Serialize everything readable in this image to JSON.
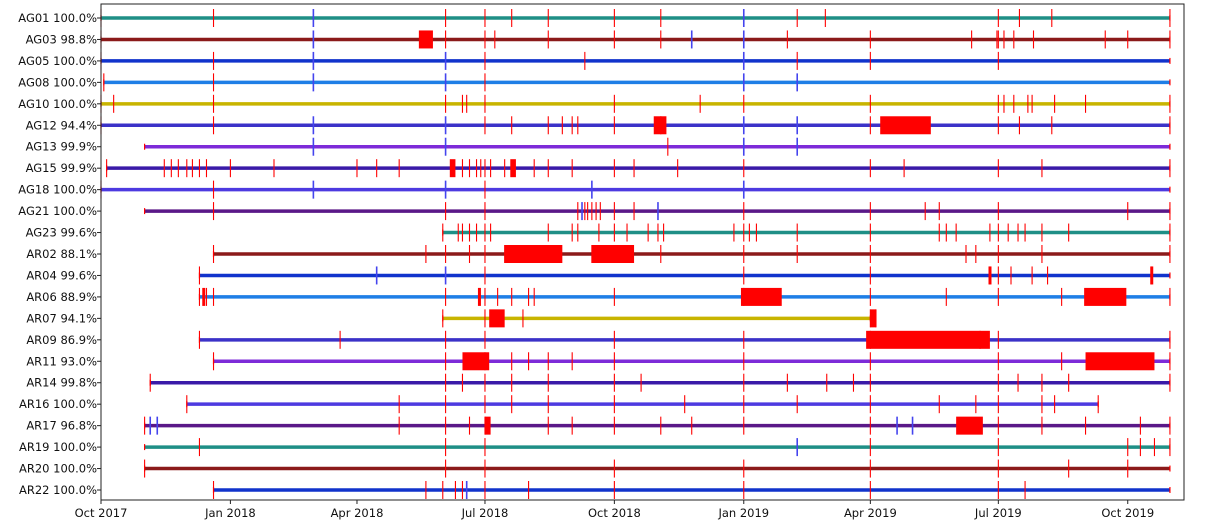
{
  "chart_data": {
    "type": "timeline",
    "title": "",
    "xlabel": "",
    "ylabel": "",
    "x_range": [
      "2017-10-01",
      "2019-11-10"
    ],
    "x_ticks": [
      {
        "date": "2017-10-01",
        "label": "Oct 2017"
      },
      {
        "date": "2018-01-01",
        "label": "Jan 2018"
      },
      {
        "date": "2018-04-01",
        "label": "Apr 2018"
      },
      {
        "date": "2018-07-01",
        "label": "Jul 2018"
      },
      {
        "date": "2018-10-01",
        "label": "Oct 2018"
      },
      {
        "date": "2019-01-01",
        "label": "Jan 2019"
      },
      {
        "date": "2019-04-01",
        "label": "Apr 2019"
      },
      {
        "date": "2019-07-01",
        "label": "Jul 2019"
      },
      {
        "date": "2019-10-01",
        "label": "Oct 2019"
      }
    ],
    "colors": {
      "gap": "#ff0000",
      "gap_dark": "#cc1010",
      "minor_mark": "#4444ee"
    },
    "rows": [
      {
        "name": "AG01",
        "availability": "100.0%",
        "start": "2017-10-01",
        "end": "2019-10-31",
        "color": "#1f8f86",
        "marks": [
          "2017-10-01",
          "2017-12-20",
          "2018-03-01",
          "2018-06-03",
          "2018-07-01",
          "2018-07-20",
          "2018-08-15",
          "2018-10-01",
          "2018-11-03",
          "2019-01-01",
          "2019-02-08",
          "2019-02-28",
          "2019-07-01",
          "2019-07-16",
          "2019-08-08",
          "2019-10-31"
        ],
        "minor": [
          "2018-03-01",
          "2019-01-01"
        ],
        "gaps": []
      },
      {
        "name": "AG03",
        "availability": "98.8%",
        "start": "2017-10-01",
        "end": "2019-10-31",
        "color": "#8b1a1a",
        "marks": [
          "2017-10-01",
          "2018-03-01",
          "2018-06-03",
          "2018-07-01",
          "2018-07-08",
          "2018-08-15",
          "2018-10-01",
          "2018-11-03",
          "2018-11-25",
          "2019-01-01",
          "2019-02-01",
          "2019-04-01",
          "2019-06-12",
          "2019-06-30",
          "2019-07-01",
          "2019-07-05",
          "2019-07-12",
          "2019-07-26",
          "2019-09-15",
          "2019-10-01",
          "2019-10-31"
        ],
        "minor": [
          "2018-03-01",
          "2018-11-25",
          "2019-01-01"
        ],
        "gaps": [
          {
            "start": "2018-05-15",
            "end": "2018-05-25"
          }
        ]
      },
      {
        "name": "AG05",
        "availability": "100.0%",
        "start": "2017-10-01",
        "end": "2019-10-31",
        "color": "#1133cc",
        "marks": [
          "2017-10-01",
          "2017-12-20",
          "2018-03-01",
          "2018-06-03",
          "2018-07-01",
          "2018-09-10",
          "2019-01-01",
          "2019-02-08",
          "2019-04-01",
          "2019-07-01"
        ],
        "minor": [
          "2018-03-01",
          "2018-06-03",
          "2019-01-01"
        ],
        "gaps": []
      },
      {
        "name": "AG08",
        "availability": "100.0%",
        "start": "2017-10-03",
        "end": "2019-10-31",
        "color": "#1e7ee6",
        "marks": [
          "2017-10-03",
          "2017-12-20",
          "2018-03-01",
          "2018-06-03",
          "2018-07-01",
          "2019-01-01",
          "2019-02-08"
        ],
        "minor": [
          "2018-03-01",
          "2018-06-03",
          "2019-01-01",
          "2019-02-08"
        ],
        "gaps": []
      },
      {
        "name": "AG10",
        "availability": "100.0%",
        "start": "2017-10-01",
        "end": "2019-10-31",
        "color": "#c8b400",
        "marks": [
          "2017-10-01",
          "2017-10-10",
          "2017-12-20",
          "2018-06-03",
          "2018-06-15",
          "2018-06-18",
          "2018-07-01",
          "2018-10-01",
          "2018-12-01",
          "2019-01-01",
          "2019-04-01",
          "2019-07-01",
          "2019-07-05",
          "2019-07-12",
          "2019-07-22",
          "2019-07-25",
          "2019-08-10",
          "2019-09-01",
          "2019-10-31"
        ],
        "minor": [],
        "gaps": []
      },
      {
        "name": "AG12",
        "availability": "94.4%",
        "start": "2017-10-01",
        "end": "2019-10-31",
        "color": "#3b32c8",
        "marks": [
          "2017-10-01",
          "2017-12-20",
          "2018-03-01",
          "2018-06-03",
          "2018-07-01",
          "2018-07-20",
          "2018-08-15",
          "2018-08-25",
          "2018-09-01",
          "2018-09-05",
          "2018-10-01",
          "2018-11-03",
          "2019-01-01",
          "2019-02-08",
          "2019-04-01",
          "2019-07-01",
          "2019-07-16",
          "2019-08-08",
          "2019-10-31"
        ],
        "minor": [
          "2018-03-01",
          "2018-06-03",
          "2019-01-01",
          "2019-02-08"
        ],
        "gaps": [
          {
            "start": "2018-10-29",
            "end": "2018-11-07"
          },
          {
            "start": "2019-04-08",
            "end": "2019-05-14"
          }
        ]
      },
      {
        "name": "AG13",
        "availability": "99.9%",
        "start": "2017-11-01",
        "end": "2019-10-31",
        "color": "#7d2bd8",
        "marks": [
          "2018-03-01",
          "2018-06-03",
          "2018-11-08",
          "2019-01-01",
          "2019-02-08"
        ],
        "minor": [
          "2018-03-01",
          "2018-06-03",
          "2019-01-01",
          "2019-02-08"
        ],
        "gaps": []
      },
      {
        "name": "AG15",
        "availability": "99.9%",
        "start": "2017-10-05",
        "end": "2019-10-31",
        "color": "#3a1aa8",
        "marks": [
          "2017-10-05",
          "2017-11-15",
          "2017-11-20",
          "2017-11-25",
          "2017-12-01",
          "2017-12-05",
          "2017-12-10",
          "2017-12-15",
          "2018-01-01",
          "2018-02-01",
          "2018-04-01",
          "2018-04-15",
          "2018-05-01",
          "2018-06-15",
          "2018-06-20",
          "2018-06-25",
          "2018-06-28",
          "2018-07-01",
          "2018-07-05",
          "2018-07-15",
          "2018-08-05",
          "2018-08-15",
          "2018-09-01",
          "2018-10-01",
          "2018-10-15",
          "2018-11-15",
          "2019-01-01",
          "2019-04-01",
          "2019-04-25",
          "2019-07-01",
          "2019-08-01",
          "2019-10-31"
        ],
        "minor": [],
        "gaps": [
          {
            "start": "2018-06-06",
            "end": "2018-06-10"
          },
          {
            "start": "2018-07-19",
            "end": "2018-07-23"
          }
        ]
      },
      {
        "name": "AG18",
        "availability": "100.0%",
        "start": "2017-10-01",
        "end": "2019-10-31",
        "color": "#4d3ae0",
        "marks": [
          "2017-10-01",
          "2017-12-20",
          "2018-03-01",
          "2018-06-03",
          "2018-07-01",
          "2018-09-15",
          "2019-01-01"
        ],
        "minor": [
          "2018-03-01",
          "2018-06-03",
          "2018-09-15",
          "2019-01-01"
        ],
        "gaps": []
      },
      {
        "name": "AG21",
        "availability": "100.0%",
        "start": "2017-11-01",
        "end": "2019-10-31",
        "color": "#5a1888",
        "marks": [
          "2017-12-20",
          "2018-06-03",
          "2018-07-01",
          "2018-09-05",
          "2018-09-08",
          "2018-09-10",
          "2018-09-12",
          "2018-09-15",
          "2018-09-18",
          "2018-09-21",
          "2018-10-01",
          "2018-10-15",
          "2018-11-01",
          "2019-01-01",
          "2019-04-01",
          "2019-05-10",
          "2019-05-20",
          "2019-07-01",
          "2019-10-01",
          "2019-10-31"
        ],
        "minor": [
          "2018-09-08",
          "2018-11-01"
        ],
        "gaps": []
      },
      {
        "name": "AG23",
        "availability": "99.6%",
        "start": "2018-06-01",
        "end": "2019-10-31",
        "color": "#1f8f86",
        "marks": [
          "2018-06-01",
          "2018-06-12",
          "2018-06-15",
          "2018-06-20",
          "2018-06-25",
          "2018-07-01",
          "2018-07-05",
          "2018-08-15",
          "2018-09-01",
          "2018-09-05",
          "2018-09-20",
          "2018-10-01",
          "2018-10-10",
          "2018-10-25",
          "2018-11-01",
          "2018-11-05",
          "2018-12-25",
          "2019-01-01",
          "2019-01-05",
          "2019-01-10",
          "2019-02-08",
          "2019-04-01",
          "2019-05-20",
          "2019-05-25",
          "2019-06-01",
          "2019-06-25",
          "2019-07-01",
          "2019-07-08",
          "2019-07-15",
          "2019-07-20",
          "2019-08-01",
          "2019-08-20",
          "2019-10-31"
        ],
        "minor": [],
        "gaps": []
      },
      {
        "name": "AR02",
        "availability": "88.1%",
        "start": "2017-12-20",
        "end": "2019-10-31",
        "color": "#8b1a1a",
        "marks": [
          "2017-12-20",
          "2018-05-20",
          "2018-06-03",
          "2018-06-20",
          "2018-07-01",
          "2018-07-15",
          "2018-09-15",
          "2018-10-01",
          "2018-11-03",
          "2019-01-01",
          "2019-02-08",
          "2019-04-01",
          "2019-06-08",
          "2019-06-15",
          "2019-07-01",
          "2019-08-01",
          "2019-10-31"
        ],
        "minor": [],
        "gaps": [
          {
            "start": "2018-07-15",
            "end": "2018-08-25"
          },
          {
            "start": "2018-09-15",
            "end": "2018-10-15"
          }
        ]
      },
      {
        "name": "AR04",
        "availability": "99.6%",
        "start": "2017-12-10",
        "end": "2019-10-31",
        "color": "#1133cc",
        "marks": [
          "2017-12-10",
          "2018-04-15",
          "2018-06-03",
          "2018-07-01",
          "2019-01-01",
          "2019-04-01",
          "2019-06-25",
          "2019-07-01",
          "2019-07-10",
          "2019-07-25",
          "2019-08-05",
          "2019-10-18"
        ],
        "minor": [
          "2018-04-15",
          "2018-06-03"
        ],
        "gaps": [
          {
            "start": "2019-06-24",
            "end": "2019-06-26"
          },
          {
            "start": "2019-10-17",
            "end": "2019-10-19"
          }
        ]
      },
      {
        "name": "AR06",
        "availability": "88.9%",
        "start": "2017-12-10",
        "end": "2019-10-31",
        "color": "#1e7ee6",
        "marks": [
          "2017-12-10",
          "2017-12-15",
          "2017-12-20",
          "2018-06-03",
          "2018-07-01",
          "2018-07-10",
          "2018-07-20",
          "2018-08-01",
          "2018-08-05",
          "2018-10-01",
          "2019-01-01",
          "2019-04-01",
          "2019-05-25",
          "2019-07-01",
          "2019-08-15",
          "2019-10-31"
        ],
        "minor": [],
        "gaps": [
          {
            "start": "2017-12-12",
            "end": "2017-12-14"
          },
          {
            "start": "2018-06-26",
            "end": "2018-06-28"
          },
          {
            "start": "2018-12-30",
            "end": "2019-01-28"
          },
          {
            "start": "2019-08-31",
            "end": "2019-09-30"
          }
        ]
      },
      {
        "name": "AR07",
        "availability": "94.1%",
        "start": "2018-06-01",
        "end": "2019-04-01",
        "color": "#c8b400",
        "marks": [
          "2018-06-01",
          "2018-07-01",
          "2018-07-28",
          "2019-04-01",
          "2019-04-05"
        ],
        "minor": [],
        "gaps": [
          {
            "start": "2018-07-04",
            "end": "2018-07-15"
          },
          {
            "start": "2019-04-01",
            "end": "2019-04-05"
          }
        ]
      },
      {
        "name": "AR09",
        "availability": "86.9%",
        "start": "2017-12-10",
        "end": "2019-10-31",
        "color": "#3b32c8",
        "marks": [
          "2017-12-10",
          "2018-03-20",
          "2018-06-03",
          "2018-07-01",
          "2018-10-01",
          "2019-01-01",
          "2019-04-01",
          "2019-06-18",
          "2019-07-01",
          "2019-10-31"
        ],
        "minor": [],
        "gaps": [
          {
            "start": "2019-03-29",
            "end": "2019-06-25"
          }
        ]
      },
      {
        "name": "AR11",
        "availability": "93.0%",
        "start": "2017-12-20",
        "end": "2019-10-31",
        "color": "#7d2bd8",
        "marks": [
          "2017-12-20",
          "2018-06-03",
          "2018-07-01",
          "2018-07-20",
          "2018-08-01",
          "2018-08-15",
          "2018-09-01",
          "2018-10-01",
          "2019-01-01",
          "2019-04-01",
          "2019-07-01",
          "2019-08-15",
          "2019-10-31"
        ],
        "minor": [],
        "gaps": [
          {
            "start": "2018-06-15",
            "end": "2018-07-04"
          },
          {
            "start": "2019-09-01",
            "end": "2019-10-20"
          }
        ]
      },
      {
        "name": "AR14",
        "availability": "99.8%",
        "start": "2017-11-05",
        "end": "2019-10-31",
        "color": "#3a1aa8",
        "marks": [
          "2017-11-05",
          "2018-06-03",
          "2018-06-15",
          "2018-07-01",
          "2018-07-20",
          "2018-08-15",
          "2018-10-01",
          "2018-10-20",
          "2019-01-01",
          "2019-02-01",
          "2019-03-01",
          "2019-03-20",
          "2019-04-01",
          "2019-07-01",
          "2019-07-15",
          "2019-08-01",
          "2019-08-20",
          "2019-10-31"
        ],
        "minor": [],
        "gaps": []
      },
      {
        "name": "AR16",
        "availability": "100.0%",
        "start": "2017-12-01",
        "end": "2019-09-10",
        "color": "#4d3ae0",
        "marks": [
          "2017-12-01",
          "2018-05-01",
          "2018-06-03",
          "2018-07-01",
          "2018-07-20",
          "2018-08-15",
          "2018-10-01",
          "2018-11-20",
          "2019-01-01",
          "2019-02-08",
          "2019-04-01",
          "2019-05-20",
          "2019-06-15",
          "2019-07-01",
          "2019-08-01",
          "2019-08-10",
          "2019-09-10"
        ],
        "minor": [],
        "gaps": []
      },
      {
        "name": "AR17",
        "availability": "96.8%",
        "start": "2017-11-01",
        "end": "2019-10-31",
        "color": "#5a1888",
        "marks": [
          "2017-11-01",
          "2017-11-05",
          "2017-11-10",
          "2018-05-01",
          "2018-06-03",
          "2018-06-20",
          "2018-07-01",
          "2018-08-15",
          "2018-09-01",
          "2018-10-01",
          "2018-11-03",
          "2018-11-25",
          "2019-01-01",
          "2019-04-01",
          "2019-04-20",
          "2019-05-01",
          "2019-07-01",
          "2019-08-01",
          "2019-09-01",
          "2019-10-10",
          "2019-10-31"
        ],
        "minor": [
          "2017-11-05",
          "2017-11-10",
          "2019-04-20",
          "2019-05-01"
        ],
        "gaps": [
          {
            "start": "2018-07-01",
            "end": "2018-07-05"
          },
          {
            "start": "2019-06-01",
            "end": "2019-06-20"
          }
        ]
      },
      {
        "name": "AR19",
        "availability": "100.0%",
        "start": "2017-11-01",
        "end": "2019-10-31",
        "color": "#1f8f86",
        "marks": [
          "2017-12-10",
          "2018-06-03",
          "2018-07-01",
          "2019-02-08",
          "2019-04-01",
          "2019-07-01",
          "2019-10-01",
          "2019-10-10",
          "2019-10-20",
          "2019-10-31"
        ],
        "minor": [
          "2019-02-08"
        ],
        "gaps": []
      },
      {
        "name": "AR20",
        "availability": "100.0%",
        "start": "2017-11-01",
        "end": "2019-10-31",
        "color": "#8b1a1a",
        "marks": [
          "2017-11-01",
          "2018-06-03",
          "2018-07-01",
          "2018-10-01",
          "2019-01-01",
          "2019-04-01",
          "2019-07-01",
          "2019-08-20",
          "2019-10-01"
        ],
        "minor": [],
        "gaps": []
      },
      {
        "name": "AR22",
        "availability": "100.0%",
        "start": "2017-12-20",
        "end": "2019-10-31",
        "color": "#1133cc",
        "marks": [
          "2017-12-20",
          "2018-05-20",
          "2018-06-01",
          "2018-06-10",
          "2018-06-15",
          "2018-06-18",
          "2018-07-01",
          "2018-08-01",
          "2018-10-01",
          "2019-01-01",
          "2019-04-01",
          "2019-07-01",
          "2019-07-20"
        ],
        "minor": [
          "2018-06-18"
        ],
        "gaps": []
      }
    ]
  }
}
